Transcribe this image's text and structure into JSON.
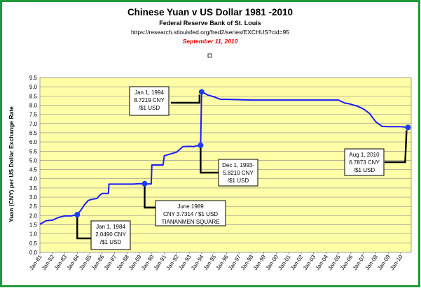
{
  "header": {
    "title": "Chinese Yuan v US Dollar 1981 -2010",
    "subtitle": "Federal Reserve Bank of St. Louis",
    "url": "https://research.stlouisfed.org/fred2/series/EXCHUS?cid=95",
    "date": "September 11, 2010"
  },
  "colors": {
    "border": "#1f9a3a",
    "plot_bg": "#ffffa8",
    "line": "#1a1aff",
    "marker": "#1a3cff",
    "date_text": "#e00000"
  },
  "chart_data": {
    "type": "line",
    "title": "Chinese Yuan v US Dollar 1981 -2010",
    "subtitle": "Federal Reserve Bank of St. Louis",
    "xlabel": "",
    "ylabel": "Yuan (CNY) per US Dollar Exchange Rate",
    "ylim": [
      0,
      9.5
    ],
    "yticks": [
      "0.0",
      "0.5",
      "1.0",
      "1.5",
      "2.0",
      "2.5",
      "3.0",
      "3.5",
      "4.0",
      "4.5",
      "5.0",
      "5.5",
      "6.0",
      "6.5",
      "7.0",
      "7.5",
      "8.0",
      "8.5",
      "9.0",
      "9.5"
    ],
    "xticks": [
      "Jan-81",
      "Jan-82",
      "Jan-83",
      "Jan-84",
      "Jan-85",
      "Jan-86",
      "Jan-87",
      "Jan-88",
      "Jan-89",
      "Jan-90",
      "Jan-91",
      "Jan-92",
      "Jan-93",
      "Jan-94",
      "Jan-95",
      "Jan-96",
      "Jan-97",
      "Jan-98",
      "Jan-99",
      "Jan-00",
      "Jan-01",
      "Jan-02",
      "Jan-03",
      "Jan-04",
      "Jan-05",
      "Jan-06",
      "Jan-07",
      "Jan-08",
      "Jan-09",
      "Jan-10"
    ],
    "xlim": [
      1981.0,
      2010.85
    ],
    "grid": true,
    "series": [
      {
        "x": [
          1981.0,
          1981.5,
          1982.0,
          1982.5,
          1983.0,
          1983.5,
          1984.0,
          1984.3,
          1984.6,
          1984.85,
          1985.0,
          1985.3,
          1985.6,
          1985.8,
          1986.0,
          1986.5,
          1986.55,
          1987.0,
          1987.5,
          1988.0,
          1988.5,
          1989.0,
          1989.5,
          1989.95,
          1990.0,
          1990.9,
          1991.0,
          1991.5,
          1992.0,
          1992.5,
          1993.0,
          1993.4,
          1993.5,
          1993.8,
          1993.92,
          1994.0,
          1994.1,
          1994.5,
          1995.0,
          1995.5,
          1996.0,
          1997.0,
          1998.0,
          1999.0,
          2000.0,
          2001.0,
          2002.0,
          2003.0,
          2004.0,
          2005.0,
          2005.54,
          2005.7,
          2006.0,
          2006.5,
          2007.0,
          2007.5,
          2008.0,
          2008.5,
          2009.0,
          2009.5,
          2010.0,
          2010.59,
          2010.69
        ],
        "y": [
          1.53,
          1.72,
          1.75,
          1.9,
          1.98,
          1.98,
          2.049,
          2.3,
          2.6,
          2.8,
          2.85,
          2.9,
          2.93,
          3.1,
          3.2,
          3.2,
          3.71,
          3.71,
          3.71,
          3.71,
          3.71,
          3.7314,
          3.72,
          3.72,
          4.75,
          4.75,
          5.25,
          5.35,
          5.45,
          5.75,
          5.76,
          5.75,
          5.78,
          5.8,
          5.821,
          8.7219,
          8.7,
          8.55,
          8.45,
          8.32,
          8.32,
          8.3,
          8.28,
          8.28,
          8.28,
          8.28,
          8.28,
          8.28,
          8.28,
          8.28,
          8.11,
          8.1,
          8.05,
          7.95,
          7.8,
          7.55,
          7.1,
          6.85,
          6.83,
          6.83,
          6.83,
          6.8,
          6.7873
        ]
      }
    ],
    "annotations": [
      {
        "lines": [
          "Jan 1, 1984",
          "2.0490 CNY",
          "/$1 USD"
        ],
        "x": 1984.0,
        "y": 2.049
      },
      {
        "lines": [
          "June 1989",
          "CNY 3.7314 / $1 USD",
          "TIANANMEN SQUARE"
        ],
        "x": 1989.42,
        "y": 3.7314
      },
      {
        "lines": [
          "Jan 1, 1994",
          "8.7219 CNY",
          "/$1 USD"
        ],
        "x": 1994.0,
        "y": 8.7219
      },
      {
        "lines": [
          "Dec 1, 1993-",
          "5.8210 CNY",
          "/$1 USD"
        ],
        "x": 1993.92,
        "y": 5.821
      },
      {
        "lines": [
          "Aug 1, 2010",
          "6.7873 CNY",
          "/$1 USD"
        ],
        "x": 2010.59,
        "y": 6.7873
      }
    ]
  }
}
